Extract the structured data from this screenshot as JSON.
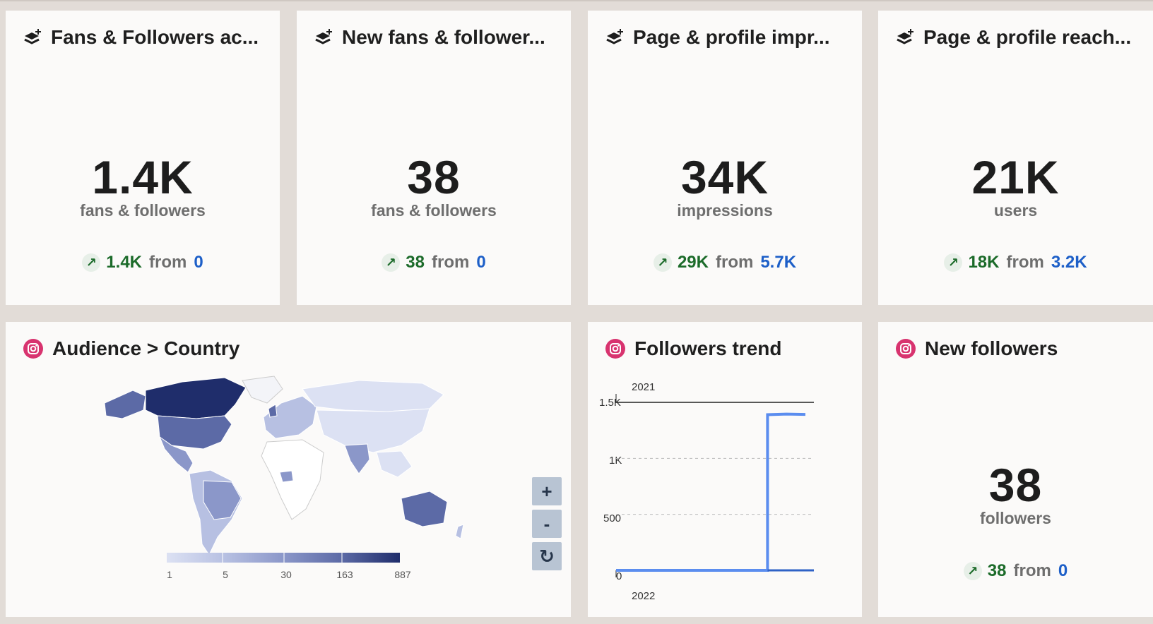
{
  "cards": [
    {
      "title": "Fans & Followers ac...",
      "value": "1.4K",
      "unit": "fans & followers",
      "delta": "1.4K",
      "from": "from",
      "prev": "0"
    },
    {
      "title": "New fans & follower...",
      "value": "38",
      "unit": "fans & followers",
      "delta": "38",
      "from": "from",
      "prev": "0"
    },
    {
      "title": "Page & profile impr...",
      "value": "34K",
      "unit": "impressions",
      "delta": "29K",
      "from": "from",
      "prev": "5.7K"
    },
    {
      "title": "Page & profile reach...",
      "value": "21K",
      "unit": "users",
      "delta": "18K",
      "from": "from",
      "prev": "3.2K"
    }
  ],
  "map_card": {
    "title": "Audience > Country",
    "legend": [
      "1",
      "5",
      "30",
      "163",
      "887"
    ],
    "zoom_in": "+",
    "zoom_out": "-",
    "reset": "↻",
    "colors": [
      "#dce1f3",
      "#b7c0e2",
      "#8b97c9",
      "#5c6aa6",
      "#1f2d6b"
    ]
  },
  "trend_card": {
    "title": "Followers trend",
    "top_label": "2021",
    "bottom_label": "2022",
    "y_ticks": [
      "1.5K",
      "1K",
      "500",
      "0"
    ],
    "line_color": "#5b8def"
  },
  "new_followers_card": {
    "title": "New followers",
    "value": "38",
    "unit": "followers",
    "delta": "38",
    "from": "from",
    "prev": "0"
  },
  "chart_data": {
    "type": "line",
    "title": "Followers trend",
    "xlabel": "",
    "ylabel": "",
    "ylim": [
      0,
      1500
    ],
    "y_ticks": [
      0,
      500,
      1000,
      1500
    ],
    "x_labels": [
      "2021",
      "2022"
    ],
    "series": [
      {
        "values": [
          0,
          0,
          0,
          0,
          0,
          0,
          0,
          0,
          1390,
          1395,
          1392
        ]
      }
    ]
  }
}
